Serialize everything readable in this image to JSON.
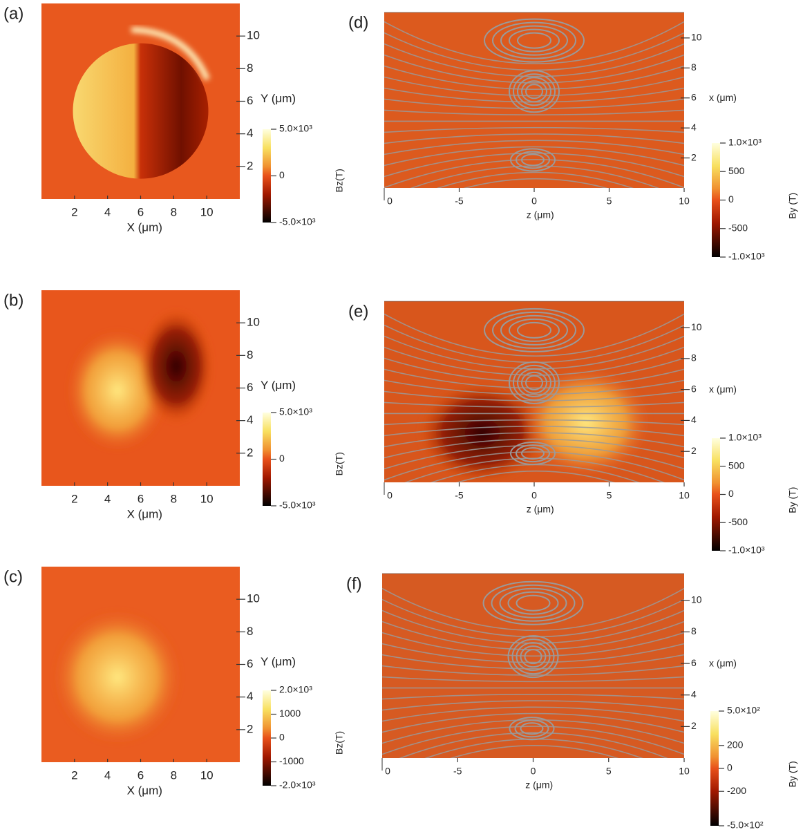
{
  "chart_data": [
    {
      "type": "heatmap",
      "label": "(a)",
      "xlabel": "X (μm)",
      "ylabel": "Y (μm)",
      "xlim": [
        0,
        12
      ],
      "ylim": [
        0,
        12
      ],
      "xticks": [
        2,
        4,
        6,
        8,
        10
      ],
      "yticks": [
        2,
        4,
        6,
        8,
        10
      ],
      "colorbar": {
        "label": "Bz(T)",
        "lim": [
          -5000,
          5000
        ],
        "ticks": [
          {
            "value": 5000,
            "label": "5.0×10³"
          },
          0,
          {
            "value": -5000,
            "label": "-5.0×10³"
          }
        ]
      }
    },
    {
      "type": "heatmap",
      "label": "(b)",
      "xlabel": "X (μm)",
      "ylabel": "Y (μm)",
      "xlim": [
        0,
        12
      ],
      "ylim": [
        0,
        12
      ],
      "xticks": [
        2,
        4,
        6,
        8,
        10
      ],
      "yticks": [
        2,
        4,
        6,
        8,
        10
      ],
      "colorbar": {
        "label": "Bz(T)",
        "lim": [
          -5000,
          5000
        ],
        "ticks": [
          {
            "value": 5000,
            "label": "5.0×10³"
          },
          0,
          {
            "value": -5000,
            "label": "-5.0×10³"
          }
        ]
      }
    },
    {
      "type": "heatmap",
      "label": "(c)",
      "xlabel": "X (μm)",
      "ylabel": "Y (μm)",
      "xlim": [
        0,
        12
      ],
      "ylim": [
        0,
        12
      ],
      "xticks": [
        2,
        4,
        6,
        8,
        10
      ],
      "yticks": [
        2,
        4,
        6,
        8,
        10
      ],
      "colorbar": {
        "label": "Bz(T)",
        "lim": [
          -2000,
          2000
        ],
        "ticks": [
          {
            "value": 2000,
            "label": "2.0×10³"
          },
          1000,
          0,
          -1000,
          {
            "value": -2000,
            "label": "-2.0×10³"
          }
        ]
      }
    },
    {
      "type": "heatmap",
      "label": "(d)",
      "xlabel": "z (μm)",
      "ylabel": "x (μm)",
      "xlim": [
        -10,
        10
      ],
      "ylim": [
        0,
        11.7
      ],
      "x_edge_label": "0",
      "xticks": [
        -5,
        0,
        5,
        10
      ],
      "yticks": [
        2,
        4,
        6,
        8,
        10
      ],
      "colorbar": {
        "label": "By (T)",
        "lim": [
          -1000,
          1000
        ],
        "ticks": [
          {
            "value": 1000,
            "label": "1.0×10³"
          },
          500,
          0,
          -500,
          {
            "value": -1000,
            "label": "-1.0×10³"
          }
        ]
      }
    },
    {
      "type": "heatmap",
      "label": "(e)",
      "xlabel": "z (μm)",
      "ylabel": "x (μm)",
      "xlim": [
        -10,
        10
      ],
      "ylim": [
        0,
        11.7
      ],
      "x_edge_label": "0",
      "xticks": [
        -5,
        0,
        5,
        10
      ],
      "yticks": [
        2,
        4,
        6,
        8,
        10
      ],
      "colorbar": {
        "label": "By (T)",
        "lim": [
          -1000,
          1000
        ],
        "ticks": [
          {
            "value": 1000,
            "label": "1.0×10³"
          },
          500,
          0,
          -500,
          {
            "value": -1000,
            "label": "-1.0×10³"
          }
        ]
      }
    },
    {
      "type": "heatmap",
      "label": "(f)",
      "xlabel": "z (μm)",
      "ylabel": "x (μm)",
      "xlim": [
        -10,
        10
      ],
      "ylim": [
        0,
        11.7
      ],
      "x_edge_label": "0",
      "xticks": [
        -5,
        0,
        5,
        10
      ],
      "yticks": [
        2,
        4,
        6,
        8,
        10
      ],
      "colorbar": {
        "label": "By (T)",
        "lim": [
          -500,
          500
        ],
        "ticks": [
          {
            "value": 500,
            "label": "5.0×10²"
          },
          200,
          0,
          -200,
          {
            "value": -500,
            "label": "-5.0×10²"
          }
        ]
      }
    }
  ]
}
